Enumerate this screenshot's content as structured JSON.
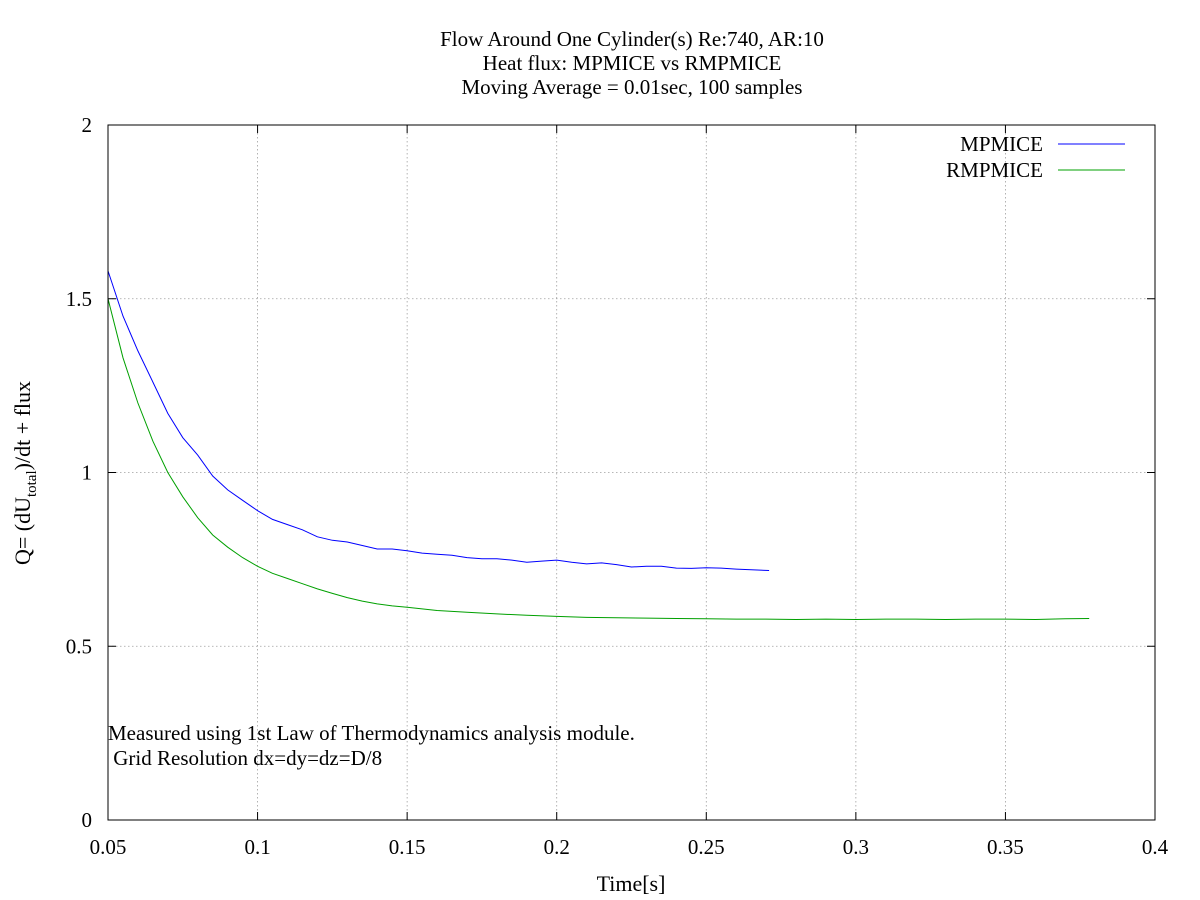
{
  "chart_data": {
    "type": "line",
    "title_lines": [
      "Flow Around One Cylinder(s) Re:740, AR:10",
      "Heat flux: MPMICE vs RMPMICE",
      "Moving Average = 0.01sec, 100 samples"
    ],
    "xlabel": "Time[s]",
    "ylabel": {
      "pre": "Q= (dU",
      "sub": "total",
      "post": ")/dt + flux"
    },
    "xlim": [
      0.05,
      0.4
    ],
    "ylim": [
      0,
      2
    ],
    "xticks": [
      0.05,
      0.1,
      0.15,
      0.2,
      0.25,
      0.3,
      0.35,
      0.4
    ],
    "xtick_labels": [
      "0.05",
      "0.1",
      "0.15",
      "0.2",
      "0.25",
      "0.3",
      "0.35",
      "0.4"
    ],
    "yticks": [
      0,
      0.5,
      1,
      1.5,
      2
    ],
    "ytick_labels": [
      "0",
      "0.5",
      "1",
      "1.5",
      "2"
    ],
    "grid": true,
    "legend_position": "top-right",
    "annotations": [
      "Measured using 1st Law of Thermodynamics analysis module.",
      " Grid Resolution dx=dy=dz=D/8"
    ],
    "series": [
      {
        "name": "MPMICE",
        "color": "#0000ff",
        "x": [
          0.05,
          0.055,
          0.06,
          0.065,
          0.07,
          0.075,
          0.08,
          0.085,
          0.09,
          0.095,
          0.1,
          0.105,
          0.11,
          0.115,
          0.12,
          0.125,
          0.13,
          0.135,
          0.14,
          0.145,
          0.15,
          0.155,
          0.16,
          0.165,
          0.17,
          0.175,
          0.18,
          0.185,
          0.19,
          0.195,
          0.2,
          0.205,
          0.21,
          0.215,
          0.22,
          0.225,
          0.23,
          0.235,
          0.24,
          0.245,
          0.25,
          0.255,
          0.26,
          0.265,
          0.271
        ],
        "y": [
          1.58,
          1.45,
          1.35,
          1.26,
          1.17,
          1.1,
          1.05,
          0.99,
          0.95,
          0.92,
          0.89,
          0.865,
          0.85,
          0.835,
          0.815,
          0.805,
          0.8,
          0.79,
          0.78,
          0.78,
          0.775,
          0.768,
          0.765,
          0.762,
          0.755,
          0.752,
          0.752,
          0.748,
          0.742,
          0.745,
          0.748,
          0.742,
          0.737,
          0.74,
          0.735,
          0.728,
          0.73,
          0.73,
          0.725,
          0.724,
          0.726,
          0.725,
          0.722,
          0.72,
          0.718
        ]
      },
      {
        "name": "RMPMICE",
        "color": "#00a000",
        "x": [
          0.05,
          0.055,
          0.06,
          0.065,
          0.07,
          0.075,
          0.08,
          0.085,
          0.09,
          0.095,
          0.1,
          0.105,
          0.11,
          0.115,
          0.12,
          0.125,
          0.13,
          0.135,
          0.14,
          0.145,
          0.15,
          0.16,
          0.17,
          0.18,
          0.19,
          0.2,
          0.21,
          0.22,
          0.23,
          0.24,
          0.25,
          0.26,
          0.27,
          0.28,
          0.29,
          0.3,
          0.31,
          0.32,
          0.33,
          0.34,
          0.35,
          0.36,
          0.37,
          0.378
        ],
        "y": [
          1.5,
          1.33,
          1.2,
          1.09,
          1.0,
          0.93,
          0.87,
          0.82,
          0.785,
          0.755,
          0.73,
          0.71,
          0.695,
          0.68,
          0.665,
          0.652,
          0.64,
          0.63,
          0.622,
          0.616,
          0.612,
          0.603,
          0.598,
          0.593,
          0.589,
          0.586,
          0.583,
          0.582,
          0.581,
          0.58,
          0.579,
          0.578,
          0.578,
          0.577,
          0.578,
          0.577,
          0.578,
          0.578,
          0.577,
          0.578,
          0.578,
          0.577,
          0.579,
          0.58
        ]
      }
    ]
  }
}
